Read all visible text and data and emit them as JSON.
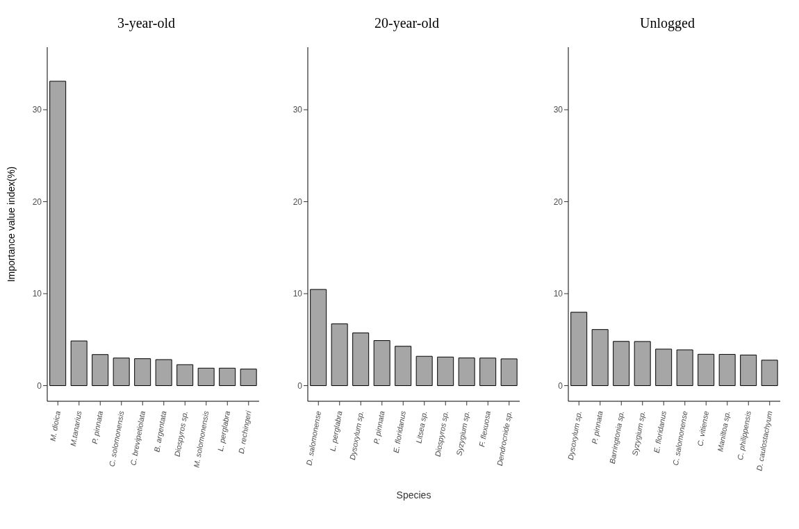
{
  "chart_data": [
    {
      "type": "bar",
      "title": "3-year-old",
      "ylabel": "Importance value index(%)",
      "categories": [
        "M. dioica",
        "M.tanarius",
        "P. pinnata",
        "C. solomonensis",
        "C. brevipetiolata",
        "B. argentata",
        "Diospyros sp.",
        "M. solomonensis",
        "L. perglabra",
        "D. rechingeri"
      ],
      "values": [
        33.1,
        4.86,
        3.38,
        3.0,
        2.93,
        2.83,
        2.28,
        1.9,
        1.9,
        1.8
      ],
      "color": "#a6a6a6",
      "ylim": [
        -1.7,
        36.8
      ],
      "yticks": [
        0,
        10,
        20,
        30
      ],
      "grid": false,
      "legend": false
    },
    {
      "type": "bar",
      "title": "20-year-old",
      "xlabel": "Species",
      "categories": [
        "D. salomonense",
        "L. perglabra",
        "Dysoxylum sp.",
        "P. pinnata",
        "E. floridanus",
        "Litsea sp.",
        "Diospyros sp.",
        "Syzygium sp.",
        "F. flexuosa",
        "Dendrocnide sp."
      ],
      "values": [
        10.46,
        6.72,
        5.73,
        4.9,
        4.28,
        3.19,
        3.11,
        3.01,
        3.0,
        2.91
      ],
      "color": "#a6a6a6",
      "ylim": [
        -1.7,
        36.8
      ],
      "yticks": [
        0,
        10,
        20,
        30
      ],
      "grid": false,
      "legend": false
    },
    {
      "type": "bar",
      "title": "Unlogged",
      "categories": [
        "Dysoxylum sp.",
        "P. pinnata",
        "Barringtonia sp.",
        "Syzygium sp.",
        "E. floridanus",
        "C. salomonense",
        "C. vitiense",
        "Maniltoa sp.",
        "C. philippensis",
        "D. caulostachyum"
      ],
      "values": [
        7.98,
        6.1,
        4.81,
        4.8,
        3.97,
        3.89,
        3.41,
        3.4,
        3.33,
        2.77
      ],
      "color": "#a6a6a6",
      "ylim": [
        -1.7,
        36.8
      ],
      "yticks": [
        0,
        10,
        20,
        30
      ],
      "grid": false,
      "legend": false
    }
  ]
}
